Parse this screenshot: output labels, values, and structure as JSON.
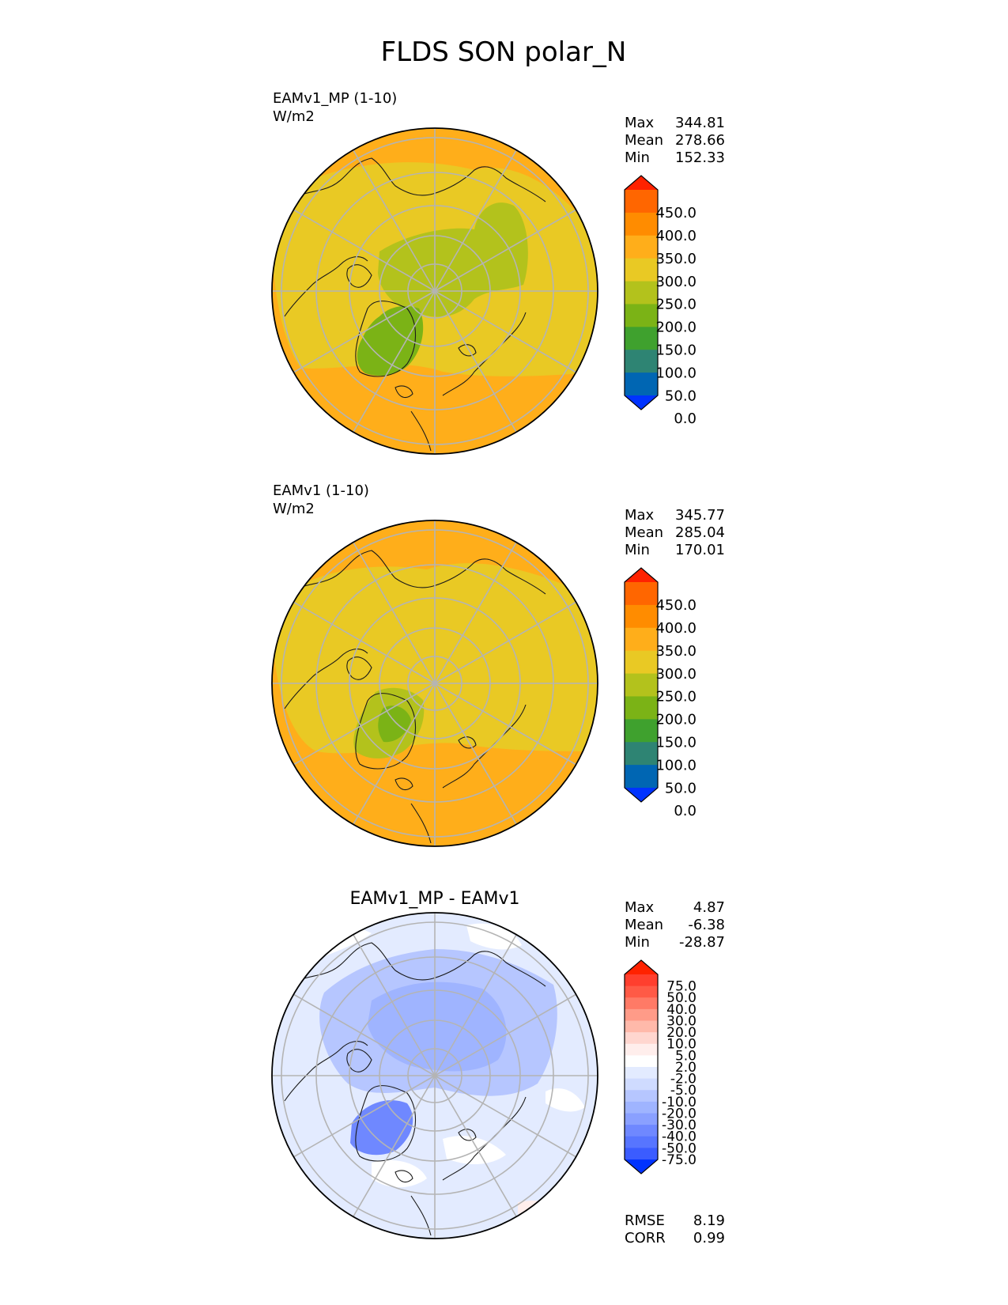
{
  "figure_title": "FLDS SON polar_N",
  "chart_data": [
    {
      "type": "heatmap",
      "projection": "north-polar-stereographic",
      "title_left": "EAMv1_MP (1-10)",
      "units": "W/m2",
      "stats": [
        {
          "label": "Max",
          "value": "344.81"
        },
        {
          "label": "Mean",
          "value": "278.66"
        },
        {
          "label": "Min",
          "value": "152.33"
        }
      ],
      "colorbar": {
        "tick_labels": [
          "450.0",
          "400.0",
          "350.0",
          "300.0",
          "250.0",
          "200.0",
          "150.0",
          "100.0",
          "50.0",
          "0.0"
        ],
        "colors": [
          "#ff2200",
          "#ff6600",
          "#ff8c00",
          "#ffae1a",
          "#e9c924",
          "#b3c21c",
          "#7bb316",
          "#3fa12e",
          "#2e8473",
          "#0066b3",
          "#0033ff"
        ],
        "extend": "both"
      },
      "field_description": [
        {
          "region": "ocean-midlatitudes",
          "value_range": [
            300,
            350
          ]
        },
        {
          "region": "arctic-basin",
          "value_range": [
            250,
            300
          ]
        },
        {
          "region": "central-arctic-and-siberia",
          "value_range": [
            200,
            250
          ]
        },
        {
          "region": "greenland",
          "value_range": [
            150,
            200
          ]
        }
      ]
    },
    {
      "type": "heatmap",
      "projection": "north-polar-stereographic",
      "title_left": "EAMv1 (1-10)",
      "units": "W/m2",
      "stats": [
        {
          "label": "Max",
          "value": "345.77"
        },
        {
          "label": "Mean",
          "value": "285.04"
        },
        {
          "label": "Min",
          "value": "170.01"
        }
      ],
      "colorbar": {
        "tick_labels": [
          "450.0",
          "400.0",
          "350.0",
          "300.0",
          "250.0",
          "200.0",
          "150.0",
          "100.0",
          "50.0",
          "0.0"
        ],
        "colors": [
          "#ff2200",
          "#ff6600",
          "#ff8c00",
          "#ffae1a",
          "#e9c924",
          "#b3c21c",
          "#7bb316",
          "#3fa12e",
          "#2e8473",
          "#0066b3",
          "#0033ff"
        ],
        "extend": "both"
      },
      "field_description": [
        {
          "region": "ocean-midlatitudes",
          "value_range": [
            300,
            350
          ]
        },
        {
          "region": "arctic-basin",
          "value_range": [
            250,
            300
          ]
        },
        {
          "region": "greenland",
          "value_range": [
            150,
            250
          ]
        }
      ]
    },
    {
      "type": "heatmap",
      "projection": "north-polar-stereographic",
      "title_center": "EAMv1_MP - EAMv1",
      "stats": [
        {
          "label": "Max",
          "value": "4.87"
        },
        {
          "label": "Mean",
          "value": "-6.38"
        },
        {
          "label": "Min",
          "value": "-28.87"
        }
      ],
      "metrics": [
        {
          "label": "RMSE",
          "value": "8.19"
        },
        {
          "label": "CORR",
          "value": "0.99"
        }
      ],
      "colorbar": {
        "tick_labels": [
          "75.0",
          "50.0",
          "40.0",
          "30.0",
          "20.0",
          "10.0",
          "5.0",
          "2.0",
          "-2.0",
          "-5.0",
          "-10.0",
          "-20.0",
          "-30.0",
          "-40.0",
          "-50.0",
          "-75.0"
        ],
        "colors": [
          "#ff2200",
          "#ff3f2e",
          "#ff5a46",
          "#ff7a66",
          "#ff9b88",
          "#ffb9aa",
          "#ffd6cf",
          "#ffeeec",
          "#ffffff",
          "#e3ebff",
          "#cfdbff",
          "#b6c6ff",
          "#9fb4ff",
          "#8aa0ff",
          "#6f88ff",
          "#5775ff",
          "#3b5cff",
          "#0033ff"
        ],
        "extend": "both"
      },
      "field_description": [
        {
          "region": "arctic-basin-and-siberia",
          "value_range": [
            -20,
            -10
          ]
        },
        {
          "region": "greenland",
          "value_range": [
            -30,
            -20
          ]
        },
        {
          "region": "north-atlantic-and-pacific",
          "value_range": [
            -5,
            -2
          ]
        },
        {
          "region": "scattered-patches",
          "value_range": [
            -2,
            2
          ]
        }
      ]
    }
  ]
}
